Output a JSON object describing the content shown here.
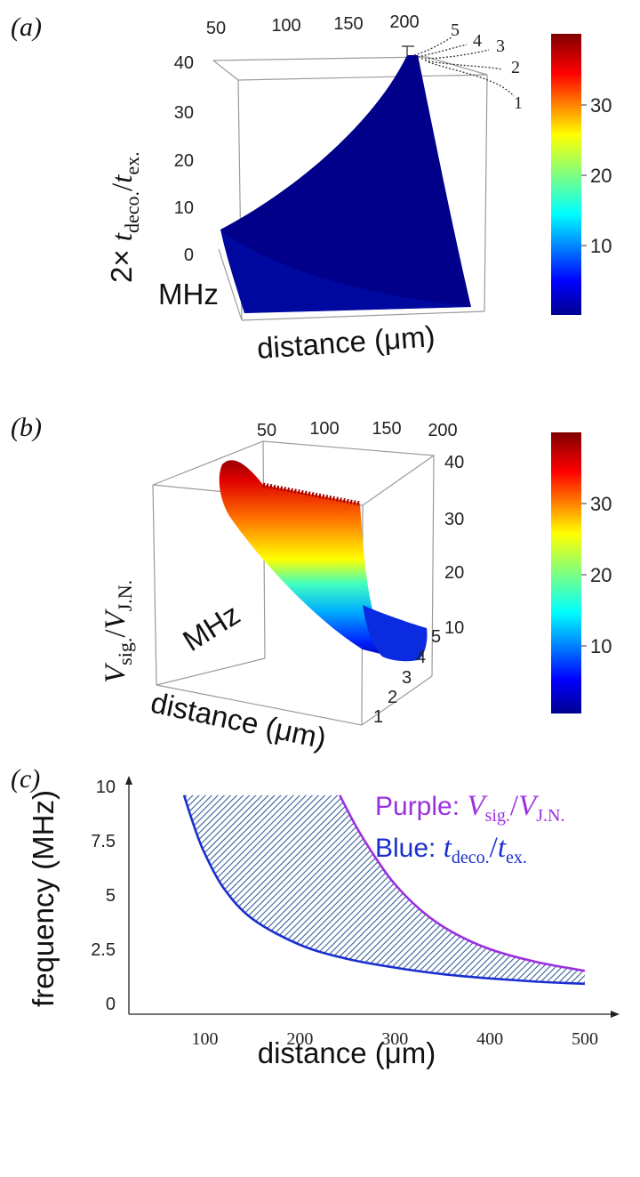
{
  "chart_data": [
    {
      "panel": "(a)",
      "type": "surface",
      "zlabel": "2× t_deco./t_ex.",
      "zlabel_parts": {
        "prefix": "2× ",
        "a": "t",
        "a_sub": "deco.",
        "slash": "/",
        "b": "t",
        "b_sub": "ex."
      },
      "xlabel": "distance (μm)",
      "ylabel": "MHz",
      "x_ticks": [
        "50",
        "100",
        "150",
        "200"
      ],
      "y_ticks": [
        "5",
        "4",
        "3",
        "2",
        "1"
      ],
      "z_ticks": [
        "40",
        "30",
        "20",
        "10",
        "0"
      ],
      "colorbar_ticks": [
        "30",
        "20",
        "10"
      ],
      "zlim": [
        0,
        40
      ]
    },
    {
      "panel": "(b)",
      "type": "surface",
      "zlabel": "V_sig./V_J.N.",
      "zlabel_parts": {
        "a": "V",
        "a_sub": "sig.",
        "slash": "/",
        "b": "V",
        "b_sub": "J.N."
      },
      "xlabel": "distance (μm)",
      "ylabel": "MHz",
      "x_ticks": [
        "50",
        "100",
        "150",
        "200"
      ],
      "y_ticks": [
        "5",
        "4",
        "3",
        "2",
        "1"
      ],
      "z_ticks": [
        "40",
        "30",
        "20",
        "10"
      ],
      "colorbar_ticks": [
        "30",
        "20",
        "10"
      ],
      "zlim": [
        10,
        40
      ]
    },
    {
      "panel": "(c)",
      "type": "area",
      "xlabel": "distance (μm)",
      "ylabel": "frequency (MHz)",
      "x_ticks": [
        "100",
        "200",
        "300",
        "400",
        "500"
      ],
      "y_ticks": [
        "0",
        "2.5",
        "5",
        "7.5",
        "10"
      ],
      "xlim": [
        20,
        530
      ],
      "ylim": [
        -0.5,
        10.5
      ],
      "series": [
        {
          "name": "Purple: V_sig./V_J.N.",
          "legend_parts": {
            "prefix": "Purple: ",
            "a": "V",
            "a_sub": "sig.",
            "slash": "/",
            "b": "V",
            "b_sub": "J.N."
          },
          "color": "#9b30e0",
          "x": [
            242,
            260,
            280,
            300,
            330,
            360,
            400,
            450,
            500
          ],
          "y": [
            9.6,
            8.1,
            6.7,
            5.5,
            4.2,
            3.3,
            2.5,
            1.9,
            1.5
          ]
        },
        {
          "name": "Blue: t_deco./t_ex.",
          "legend_parts": {
            "prefix": "Blue: ",
            "a": "t",
            "a_sub": "deco.",
            "slash": "/",
            "b": "t",
            "b_sub": "ex."
          },
          "color": "#1a2fcf",
          "x": [
            78,
            90,
            100,
            120,
            150,
            200,
            250,
            300,
            350,
            400,
            450,
            500
          ],
          "y": [
            9.6,
            8.0,
            6.9,
            5.3,
            3.9,
            2.7,
            2.05,
            1.65,
            1.35,
            1.15,
            1.0,
            0.9
          ]
        }
      ],
      "fill": "hatched region between the curves",
      "fill_color": "#3a5f9a"
    }
  ]
}
